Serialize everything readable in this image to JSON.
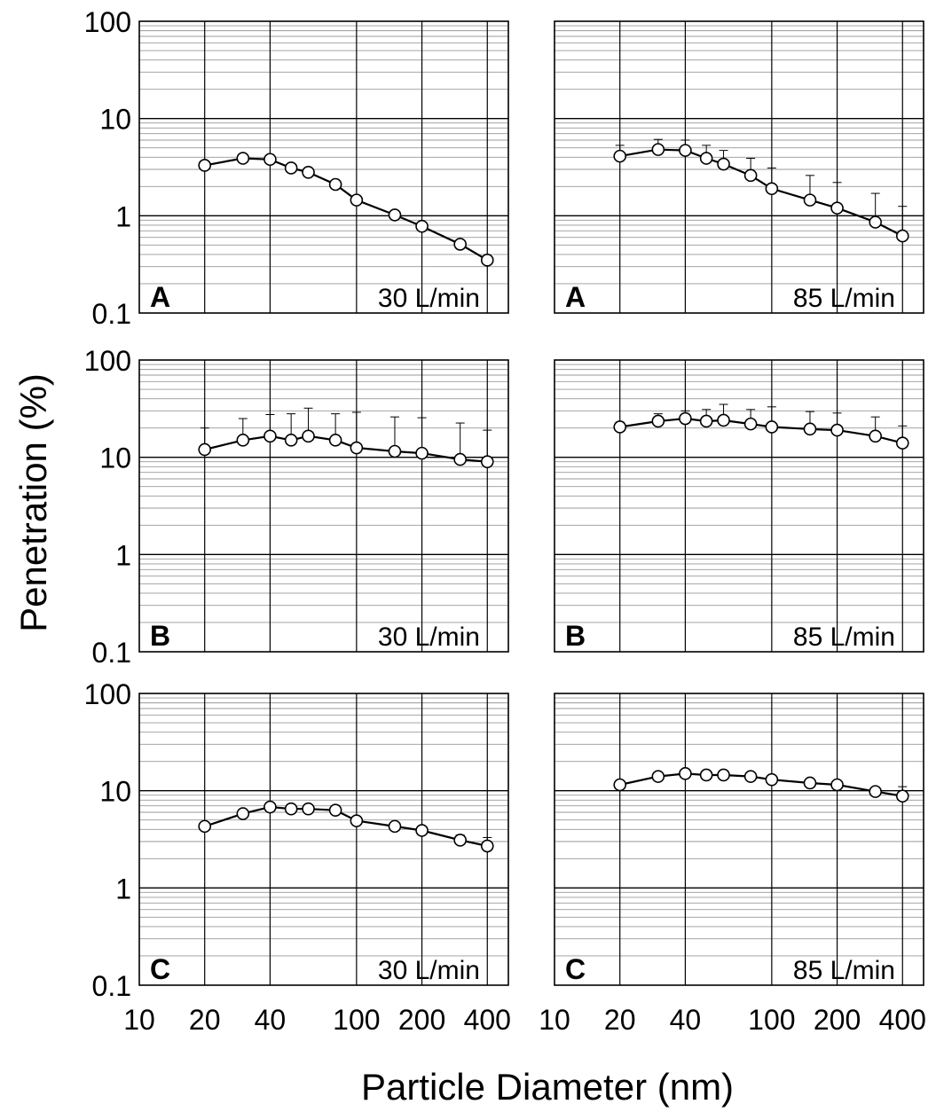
{
  "figure": {
    "ylabel": "Penetration (%)",
    "xlabel": "Particle Diameter (nm)"
  },
  "colors": {
    "axis": "#000000",
    "major_grid": "#000000",
    "minor_grid": "#999999",
    "marker_fill": "#ffffff",
    "line": "#000000"
  },
  "chart_data": [
    {
      "type": "line",
      "panel": "A",
      "flow": "30 L/min",
      "xscale": "log",
      "yscale": "log",
      "xlim": [
        10,
        500
      ],
      "ylim": [
        0.1,
        100
      ],
      "xticks": [
        10,
        20,
        40,
        100,
        200,
        400
      ],
      "yticks": [
        0.1,
        1,
        10,
        100
      ],
      "x": [
        20,
        30,
        40,
        50,
        60,
        80,
        100,
        150,
        200,
        300,
        400
      ],
      "y": [
        3.3,
        3.9,
        3.8,
        3.1,
        2.8,
        2.1,
        1.45,
        1.02,
        0.78,
        0.51,
        0.35
      ],
      "error_upper": null
    },
    {
      "type": "line",
      "panel": "A",
      "flow": "85 L/min",
      "xscale": "log",
      "yscale": "log",
      "xlim": [
        10,
        500
      ],
      "ylim": [
        0.1,
        100
      ],
      "xticks": [
        10,
        20,
        40,
        100,
        200,
        400
      ],
      "yticks": [
        0.1,
        1,
        10,
        100
      ],
      "x": [
        20,
        30,
        40,
        50,
        60,
        80,
        100,
        150,
        200,
        300,
        400
      ],
      "y": [
        4.1,
        4.8,
        4.7,
        3.9,
        3.4,
        2.6,
        1.9,
        1.45,
        1.2,
        0.86,
        0.62
      ],
      "error_upper": [
        5.3,
        6.1,
        6.0,
        5.3,
        4.7,
        3.9,
        3.1,
        2.6,
        2.2,
        1.7,
        1.25
      ]
    },
    {
      "type": "line",
      "panel": "B",
      "flow": "30 L/min",
      "xscale": "log",
      "yscale": "log",
      "xlim": [
        10,
        500
      ],
      "ylim": [
        0.1,
        100
      ],
      "xticks": [
        10,
        20,
        40,
        100,
        200,
        400
      ],
      "yticks": [
        0.1,
        1,
        10,
        100
      ],
      "x": [
        20,
        30,
        40,
        50,
        60,
        80,
        100,
        150,
        200,
        300,
        400
      ],
      "y": [
        12,
        15,
        16.5,
        15,
        16.5,
        15,
        12.5,
        11.5,
        11,
        9.5,
        9
      ],
      "error_upper": [
        20,
        25,
        27.5,
        28,
        32,
        28,
        29,
        26,
        25.5,
        22.5,
        19
      ]
    },
    {
      "type": "line",
      "panel": "B",
      "flow": "85 L/min",
      "xscale": "log",
      "yscale": "log",
      "xlim": [
        10,
        500
      ],
      "ylim": [
        0.1,
        100
      ],
      "xticks": [
        10,
        20,
        40,
        100,
        200,
        400
      ],
      "yticks": [
        0.1,
        1,
        10,
        100
      ],
      "x": [
        20,
        30,
        40,
        50,
        60,
        80,
        100,
        150,
        200,
        300,
        400
      ],
      "y": [
        20.5,
        23.5,
        25,
        23.5,
        24,
        22,
        20.5,
        19.5,
        19,
        16.5,
        14
      ],
      "error_upper": [
        23,
        28,
        30,
        31,
        35,
        31,
        33,
        29.5,
        28.5,
        26,
        21
      ]
    },
    {
      "type": "line",
      "panel": "C",
      "flow": "30 L/min",
      "xscale": "log",
      "yscale": "log",
      "xlim": [
        10,
        500
      ],
      "ylim": [
        0.1,
        100
      ],
      "xticks": [
        10,
        20,
        40,
        100,
        200,
        400
      ],
      "yticks": [
        0.1,
        1,
        10,
        100
      ],
      "x": [
        20,
        30,
        40,
        50,
        60,
        80,
        100,
        150,
        200,
        300,
        400
      ],
      "y": [
        4.3,
        5.8,
        6.8,
        6.5,
        6.5,
        6.3,
        4.9,
        4.3,
        3.9,
        3.1,
        2.7
      ],
      "error_upper": [
        4.7,
        6.3,
        7.3,
        7.0,
        7.0,
        6.8,
        5.3,
        4.6,
        4.2,
        3.5,
        3.3
      ]
    },
    {
      "type": "line",
      "panel": "C",
      "flow": "85 L/min",
      "xscale": "log",
      "yscale": "log",
      "xlim": [
        10,
        500
      ],
      "ylim": [
        0.1,
        100
      ],
      "xticks": [
        10,
        20,
        40,
        100,
        200,
        400
      ],
      "yticks": [
        0.1,
        1,
        10,
        100
      ],
      "x": [
        20,
        30,
        40,
        50,
        60,
        80,
        100,
        150,
        200,
        300,
        400
      ],
      "y": [
        11.5,
        14,
        15,
        14.5,
        14.5,
        14,
        13,
        12,
        11.5,
        9.8,
        8.8
      ],
      "error_upper": [
        12.5,
        15,
        16.2,
        15.6,
        15.6,
        15.2,
        14,
        13,
        12.5,
        10.6,
        11
      ]
    }
  ]
}
